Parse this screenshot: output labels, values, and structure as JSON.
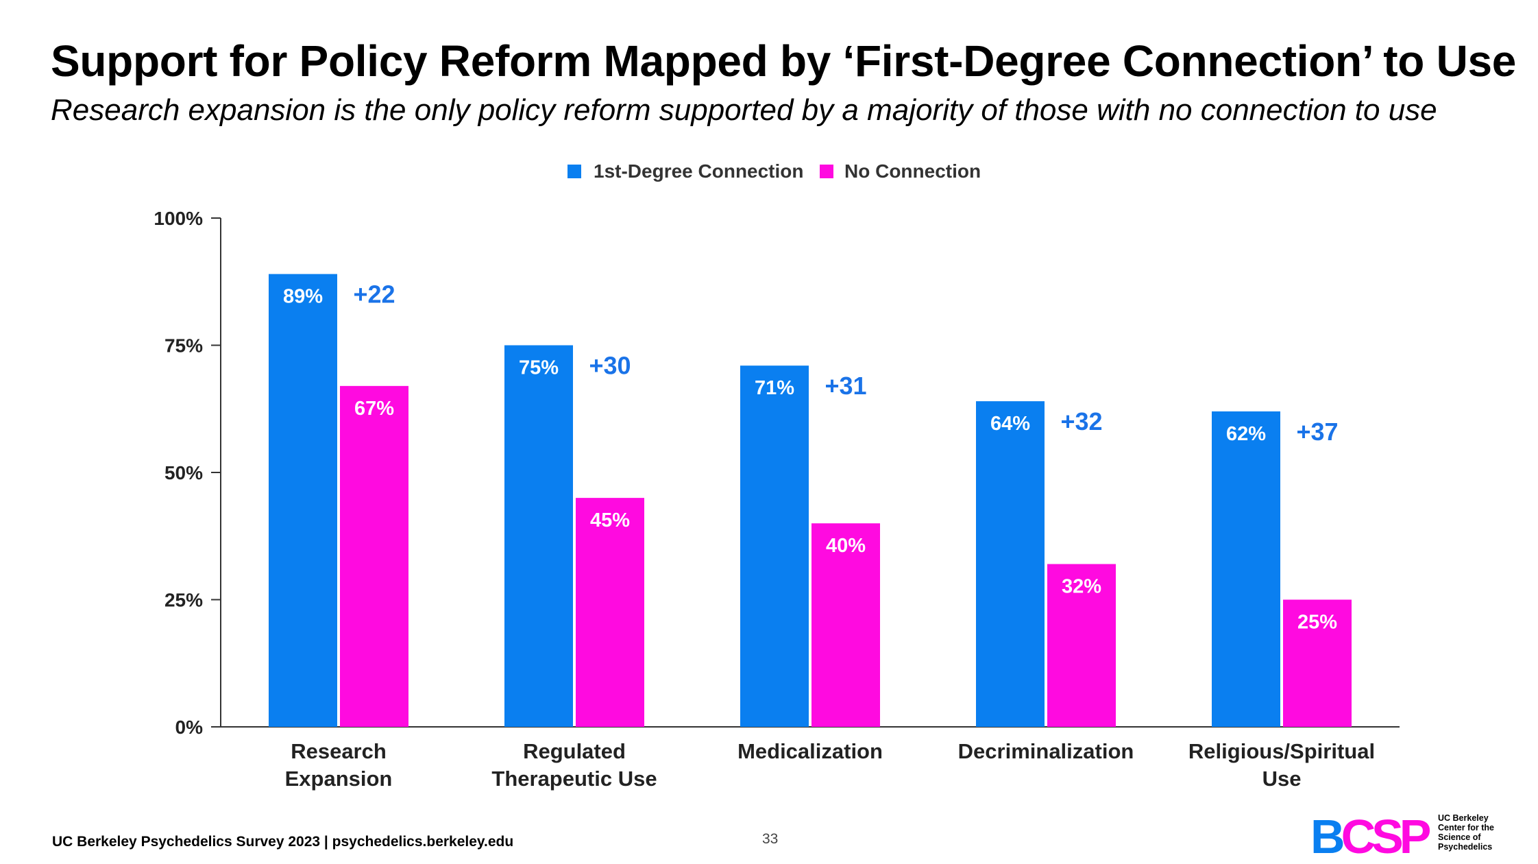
{
  "title": "Support for Policy Reform Mapped by ‘First-Degree Connection’ to Use",
  "subtitle": "Research expansion is the only policy reform supported by a majority of those with no connection to use",
  "colors": {
    "series1": "#0a7ff0",
    "series2": "#ff0ae0",
    "diff": "#1a73e8",
    "axis": "#333333"
  },
  "chart_data": {
    "type": "bar",
    "categories": [
      [
        "Research",
        "Expansion"
      ],
      [
        "Regulated",
        "Therapeutic Use"
      ],
      [
        "Medicalization"
      ],
      [
        "Decriminalization"
      ],
      [
        "Religious/Spiritual",
        "Use"
      ]
    ],
    "series": [
      {
        "name": "1st-Degree Connection",
        "values": [
          89,
          75,
          71,
          64,
          62
        ],
        "labels": [
          "89%",
          "75%",
          "71%",
          "64%",
          "62%"
        ]
      },
      {
        "name": "No Connection",
        "values": [
          67,
          45,
          40,
          32,
          25
        ],
        "labels": [
          "67%",
          "45%",
          "40%",
          "32%",
          "25%"
        ]
      }
    ],
    "differences": [
      "+22",
      "+30",
      "+31",
      "+32",
      "+37"
    ],
    "y_ticks": [
      {
        "value": 0,
        "label": "0%"
      },
      {
        "value": 25,
        "label": "25%"
      },
      {
        "value": 50,
        "label": "50%"
      },
      {
        "value": 75,
        "label": "75%"
      },
      {
        "value": 100,
        "label": "100%"
      }
    ],
    "ylim": [
      0,
      100
    ],
    "legend": "top-center",
    "grid": false
  },
  "footer": {
    "source": "UC Berkeley Psychedelics Survey 2023 | psychedelics.berkeley.edu",
    "page_number": "33"
  },
  "logo": {
    "mark_parts": [
      "B",
      "CSP"
    ],
    "text_lines": [
      "UC Berkeley",
      "Center for the",
      "Science of",
      "Psychedelics"
    ]
  }
}
